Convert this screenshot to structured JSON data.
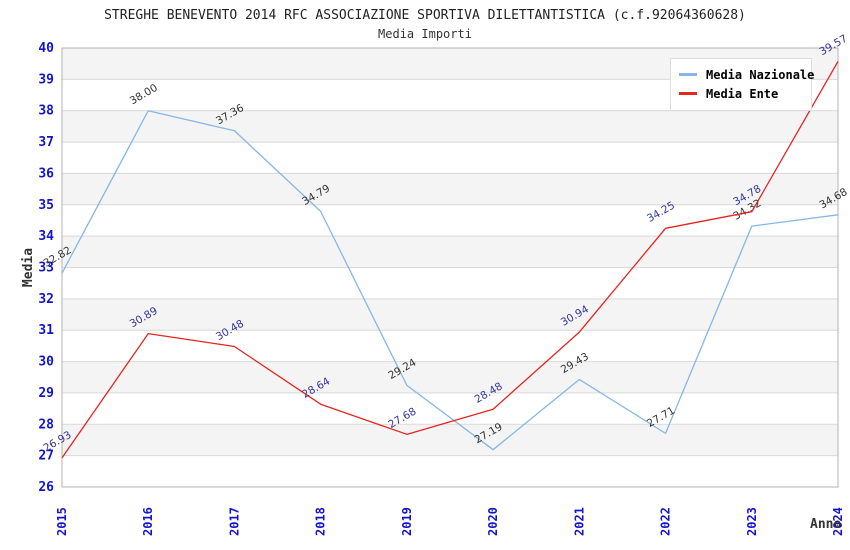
{
  "header": {
    "title": "STREGHE BENEVENTO 2014 RFC ASSOCIAZIONE SPORTIVA DILETTANTISTICA (c.f.92064360628)",
    "subtitle": "Media Importi"
  },
  "legend": {
    "items": [
      {
        "label": "Media Nazionale",
        "color": "#85b7e8"
      },
      {
        "label": "Media Ente",
        "color": "#e82420"
      }
    ]
  },
  "chart_data": {
    "type": "line",
    "x": [
      2015,
      2016,
      2017,
      2018,
      2019,
      2020,
      2021,
      2022,
      2023,
      2024
    ],
    "xlabel": "Anno",
    "ylabel": "Media",
    "ylim": [
      26,
      40
    ],
    "y_tick_step": 1,
    "grid": true,
    "band_fill": true,
    "legend_position": "top-right",
    "series": [
      {
        "name": "Media Nazionale",
        "color": "#85b7e8",
        "label_color": "#333333",
        "values": [
          32.82,
          38.0,
          37.36,
          34.79,
          29.24,
          27.19,
          29.43,
          27.71,
          34.32,
          34.68
        ]
      },
      {
        "name": "Media Ente",
        "color": "#e82420",
        "label_color": "#333399",
        "values": [
          26.93,
          30.89,
          30.48,
          28.64,
          27.68,
          28.48,
          30.94,
          34.25,
          34.78,
          39.57
        ]
      }
    ]
  },
  "colors": {
    "tick_label": "#1414cc",
    "axis_title": "#333333",
    "grid_line": "#d9d9d9",
    "band_gray": "#f4f4f4",
    "plot_border": "#b3b3b3",
    "title_text": "#222222"
  }
}
